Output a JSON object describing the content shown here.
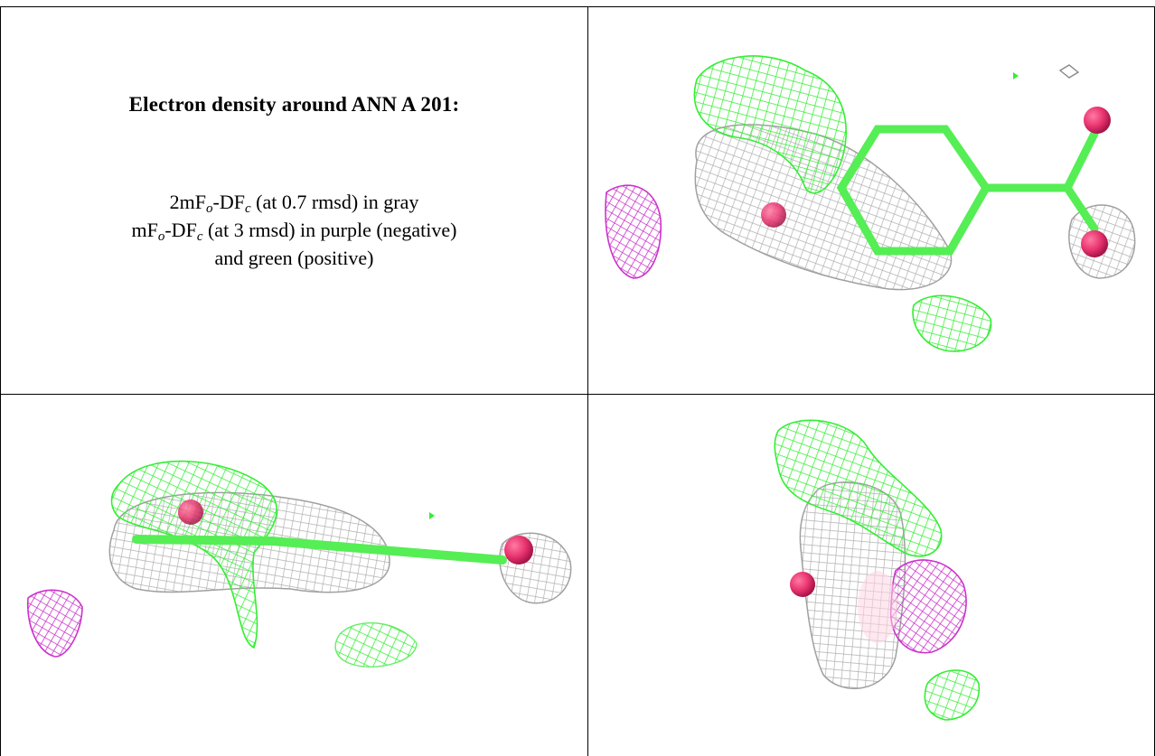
{
  "figure": {
    "title": "Electron density around ANN A 201:",
    "legend_lines": [
      {
        "pre": "2mF",
        "sub1": "o",
        "mid": "-DF",
        "sub2": "c",
        "post": " (at 0.7 rmsd) in gray"
      },
      {
        "pre": "mF",
        "sub1": "o",
        "mid": "-DF",
        "sub2": "c",
        "post": " (at 3 rmsd) in purple (negative)"
      },
      {
        "pre": "",
        "sub1": "",
        "mid": "",
        "sub2": "",
        "post": "and green (positive)"
      }
    ],
    "colors": {
      "gray_mesh": "#b8b8b8",
      "purple_mesh": "#cc33cc",
      "green_mesh": "#33ee33",
      "ligand_carbon": "#55ee55",
      "oxygen": "#e8336e"
    },
    "panels": [
      {
        "name": "text-panel"
      },
      {
        "name": "view-top-right"
      },
      {
        "name": "view-bottom-left"
      },
      {
        "name": "view-bottom-right"
      }
    ]
  }
}
